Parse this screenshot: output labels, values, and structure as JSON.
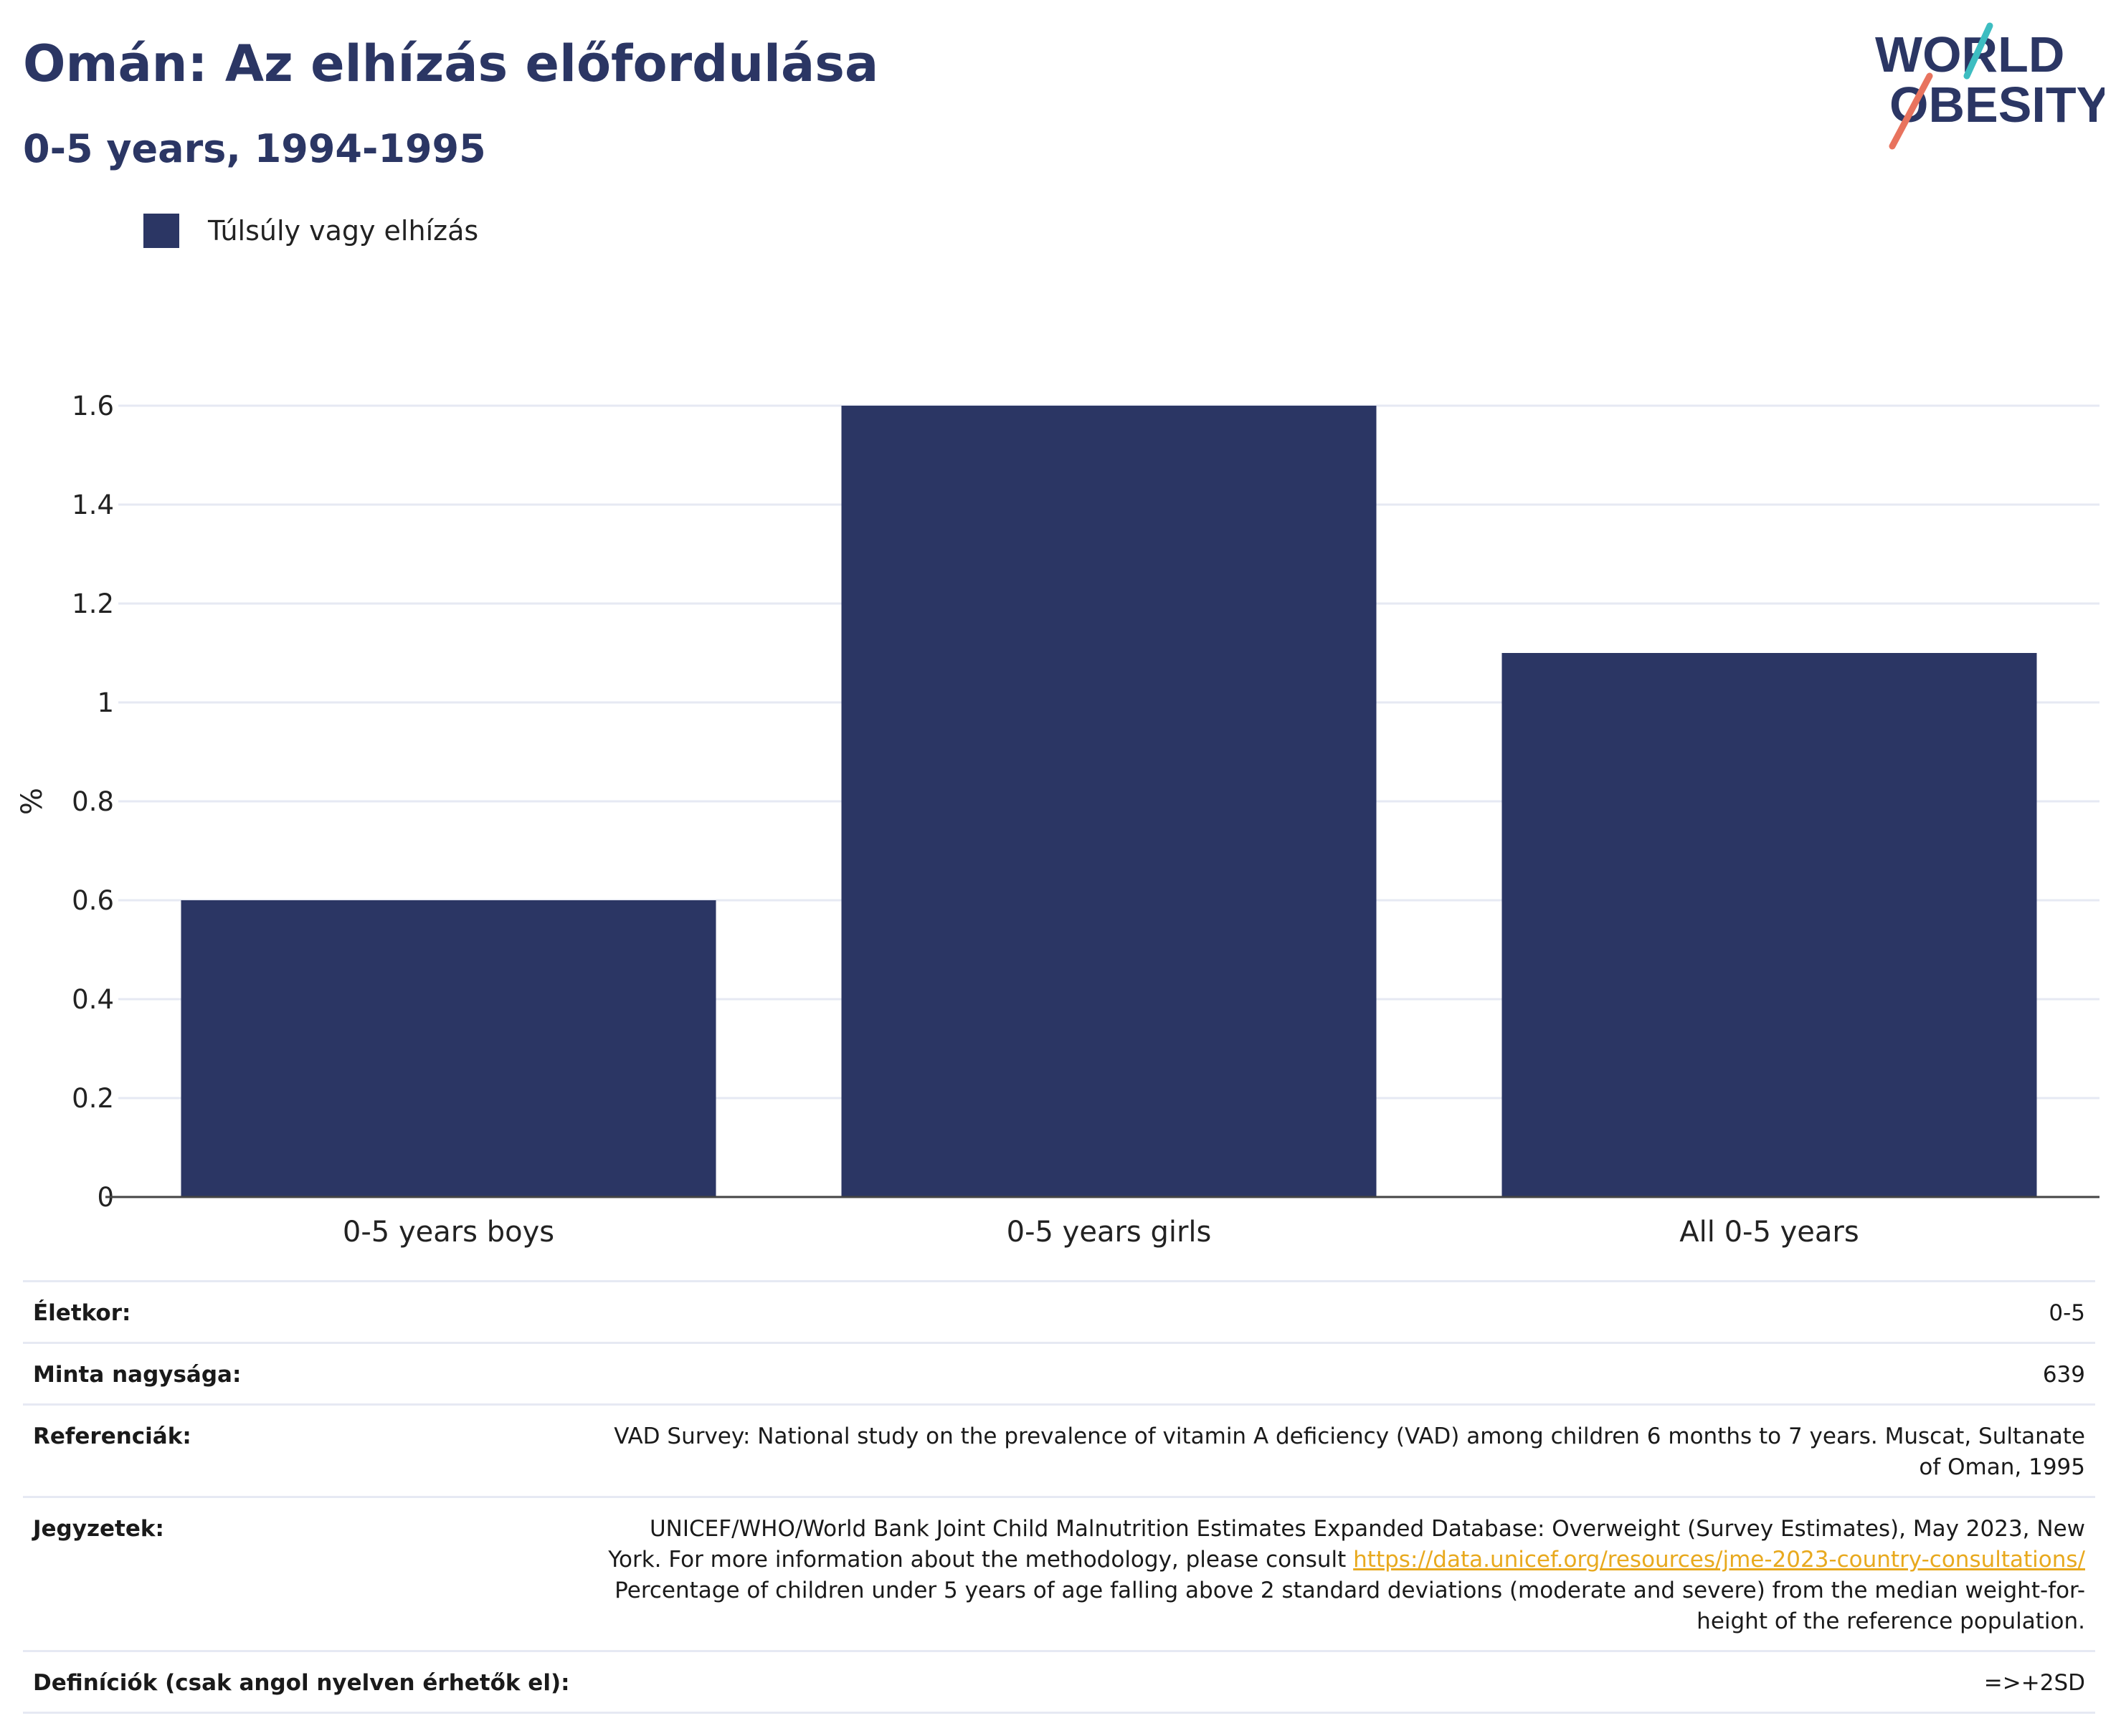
{
  "header": {
    "title": "Omán: Az elhízás előfordulása",
    "subtitle": "0-5 years, 1994-1995",
    "logo_line1": "WORLD",
    "logo_line2": "OBESITY"
  },
  "legend": {
    "label": "Túlsúly vagy elhízás",
    "color": "#2b3664"
  },
  "chart_data": {
    "type": "bar",
    "categories": [
      "0-5 years boys",
      "0-5 years girls",
      "All 0-5 years"
    ],
    "series": [
      {
        "name": "Túlsúly vagy elhízás",
        "values": [
          0.6,
          1.6,
          1.1
        ],
        "color": "#2b3664"
      }
    ],
    "ylabel": "%",
    "ylim": [
      0,
      1.6
    ],
    "yticks": [
      0,
      0.2,
      0.4,
      0.6,
      0.8,
      1,
      1.2,
      1.4,
      1.6
    ],
    "ytick_labels": [
      "0",
      "0.2",
      "0.4",
      "0.6",
      "0.8",
      "1",
      "1.2",
      "1.4",
      "1.6"
    ],
    "grid": true,
    "legend_position": "top-left"
  },
  "info": {
    "age_label": "Életkor:",
    "age_value": "0-5",
    "sample_label": "Minta nagysága:",
    "sample_value": "639",
    "references_label": "Referenciák:",
    "references_value": "VAD Survey: National study on the prevalence of vitamin A deficiency (VAD) among children 6 months to 7 years. Muscat, Sultanate of Oman, 1995",
    "notes_label": "Jegyzetek:",
    "notes_text1": "UNICEF/WHO/World Bank Joint Child Malnutrition Estimates Expanded Database: Overweight (Survey Estimates), May 2023, New York. For more information about the methodology, please consult ",
    "notes_link": "https://data.unicef.org/resources/jme-2023-country-consultations/",
    "notes_text2": "Percentage of children under 5 years of age falling above 2 standard deviations (moderate and severe) from the median weight-for-height of the reference population.",
    "definitions_label": "Definíciók (csak angol nyelven érhetők el):",
    "definitions_value": "=>+2SD"
  },
  "colors": {
    "title": "#2b3664",
    "bar": "#2b3664",
    "grid": "#e6e9f3",
    "link": "#e8a91e",
    "logo_teal": "#3dbdc1",
    "logo_coral": "#e8735e"
  }
}
